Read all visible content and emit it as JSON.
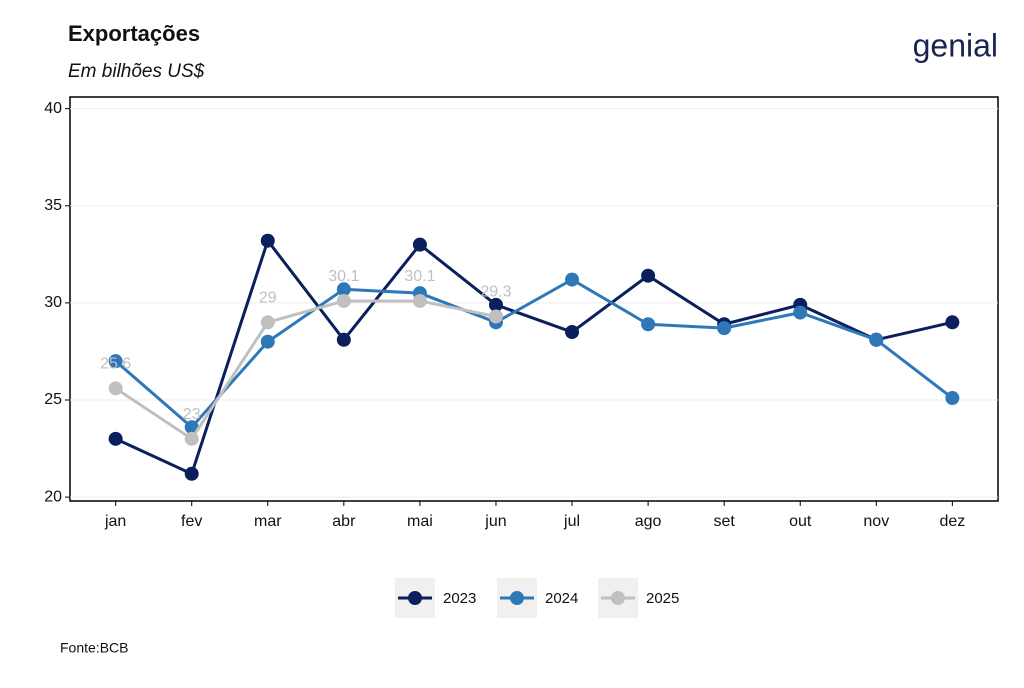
{
  "chart_data": {
    "type": "line",
    "title": "Exportações",
    "subtitle": "Em bilhões US$",
    "source": "Fonte:BCB",
    "logo": "genial",
    "categories": [
      "jan",
      "fev",
      "mar",
      "abr",
      "mai",
      "jun",
      "jul",
      "ago",
      "set",
      "out",
      "nov",
      "dez"
    ],
    "series": [
      {
        "name": "2023",
        "color": "#0b1f5c",
        "values": [
          23.0,
          21.2,
          33.2,
          28.1,
          33.0,
          29.9,
          28.5,
          31.4,
          28.9,
          29.9,
          28.1,
          29.0
        ]
      },
      {
        "name": "2024",
        "color": "#2f78b8",
        "values": [
          27.0,
          23.6,
          28.0,
          30.7,
          30.5,
          29.0,
          31.2,
          28.9,
          28.7,
          29.5,
          28.1,
          25.1
        ]
      },
      {
        "name": "2025",
        "color": "#c0c0c0",
        "data_labels": true,
        "values": [
          25.6,
          23,
          29,
          30.1,
          30.1,
          29.3,
          null,
          null,
          null,
          null,
          null,
          null
        ]
      }
    ],
    "ylim": [
      19.8,
      40.6
    ],
    "yticks": [
      20,
      25,
      30,
      35,
      40
    ],
    "grid": true,
    "legend": "bottom"
  }
}
